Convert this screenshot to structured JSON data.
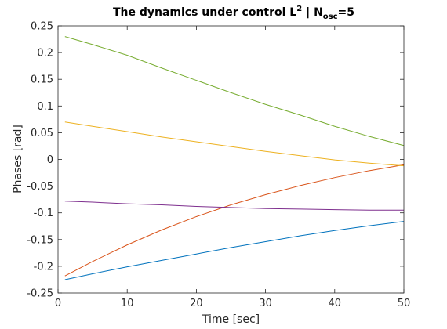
{
  "chart_data": {
    "type": "line",
    "title": {
      "prefix": "The dynamics under control L",
      "superscript": "2",
      "middle": " | N",
      "subscript": "osc",
      "suffix": "=5"
    },
    "xlabel": "Time [sec]",
    "ylabel": "Phases [rad]",
    "xlim": [
      0,
      50
    ],
    "ylim": [
      -0.25,
      0.25
    ],
    "xticks": [
      0,
      10,
      20,
      30,
      40,
      50
    ],
    "yticks": [
      -0.25,
      -0.2,
      -0.15,
      -0.1,
      -0.05,
      0,
      0.05,
      0.1,
      0.15,
      0.2,
      0.25
    ],
    "ytick_labels": [
      "-0.25",
      "-0.2",
      "-0.15",
      "-0.1",
      "-0.05",
      "0",
      "0.05",
      "0.1",
      "0.15",
      "0.2",
      "0.25"
    ],
    "grid": false,
    "box": true,
    "series": [
      {
        "color": "#0072BD",
        "x": [
          1,
          5,
          10,
          15,
          20,
          25,
          30,
          35,
          40,
          45,
          50
        ],
        "values": [
          -0.225,
          -0.214,
          -0.201,
          -0.189,
          -0.177,
          -0.165,
          -0.154,
          -0.143,
          -0.133,
          -0.124,
          -0.116
        ]
      },
      {
        "color": "#D95319",
        "x": [
          1,
          5,
          10,
          15,
          20,
          25,
          30,
          35,
          40,
          45,
          50
        ],
        "values": [
          -0.218,
          -0.191,
          -0.16,
          -0.132,
          -0.107,
          -0.085,
          -0.066,
          -0.049,
          -0.034,
          -0.021,
          -0.01
        ]
      },
      {
        "color": "#EDB120",
        "x": [
          1,
          5,
          10,
          15,
          20,
          25,
          30,
          35,
          40,
          45,
          50
        ],
        "values": [
          0.07,
          0.062,
          0.052,
          0.042,
          0.033,
          0.024,
          0.015,
          0.007,
          -0.001,
          -0.007,
          -0.012
        ]
      },
      {
        "color": "#7E2F8E",
        "x": [
          1,
          5,
          10,
          15,
          20,
          25,
          30,
          35,
          40,
          45,
          50
        ],
        "values": [
          -0.078,
          -0.08,
          -0.083,
          -0.085,
          -0.088,
          -0.09,
          -0.092,
          -0.093,
          -0.094,
          -0.095,
          -0.095
        ]
      },
      {
        "color": "#77AC30",
        "x": [
          1,
          5,
          10,
          15,
          20,
          25,
          30,
          35,
          40,
          45,
          50
        ],
        "values": [
          0.23,
          0.215,
          0.195,
          0.171,
          0.148,
          0.125,
          0.103,
          0.083,
          0.062,
          0.043,
          0.026
        ]
      }
    ]
  }
}
